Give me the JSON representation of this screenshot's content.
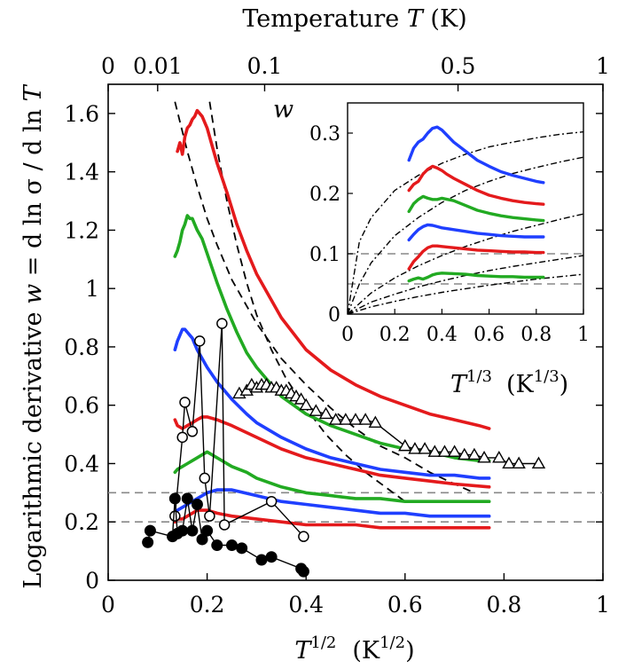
{
  "chart_data": [
    {
      "type": "line",
      "x_axis": {
        "label_main": "T",
        "label_exp": "1/2",
        "label_unit_base": "(K",
        "label_unit_exp": "1/2",
        "label_unit_close": ")",
        "range": [
          0,
          1
        ],
        "ticks": [
          0,
          0.2,
          0.4,
          0.6,
          0.8,
          1
        ],
        "tick_labels": [
          "0",
          "0.2",
          "0.4",
          "0.6",
          "0.8",
          "1"
        ]
      },
      "top_axis": {
        "label_prefix": "Temperature ",
        "label_var": "T",
        "label_suffix": " (K)",
        "ticks_T": [
          0,
          0.01,
          0.1,
          0.5,
          1
        ],
        "tick_labels": [
          "0",
          "0.01",
          "0.1",
          "0.5",
          "1"
        ]
      },
      "y_axis": {
        "label_prefix": "Logarithmic derivative  ",
        "label_var": "w",
        "label_mid": " = d ln σ  / d ln ",
        "label_var2": "T",
        "range": [
          0,
          1.7
        ],
        "ticks": [
          0,
          0.2,
          0.4,
          0.6,
          0.8,
          1,
          1.2,
          1.4,
          1.6
        ],
        "tick_labels": [
          "0",
          "0.2",
          "0.4",
          "0.6",
          "0.8",
          "1",
          "1.2",
          "1.4",
          "1.6"
        ]
      },
      "hlines": [
        0.2,
        0.3
      ],
      "dashed_fits": [
        {
          "x": [
            0.135,
            0.16,
            0.18,
            0.2,
            0.22,
            0.25,
            0.3,
            0.35,
            0.4,
            0.45,
            0.5,
            0.55,
            0.6,
            0.65,
            0.7,
            0.74
          ],
          "y": [
            1.64,
            1.47,
            1.35,
            1.24,
            1.15,
            1.03,
            0.88,
            0.76,
            0.67,
            0.59,
            0.52,
            0.46,
            0.42,
            0.37,
            0.33,
            0.3
          ]
        },
        {
          "x": [
            0.205,
            0.22,
            0.24,
            0.26,
            0.28,
            0.3,
            0.33,
            0.36,
            0.4,
            0.44,
            0.48,
            0.52,
            0.56,
            0.6
          ],
          "y": [
            1.64,
            1.48,
            1.3,
            1.15,
            1.02,
            0.91,
            0.79,
            0.69,
            0.59,
            0.5,
            0.43,
            0.37,
            0.32,
            0.27
          ]
        }
      ],
      "series": [
        {
          "color": "#e41a1c",
          "x": [
            0.14,
            0.145,
            0.15,
            0.155,
            0.16,
            0.165,
            0.17,
            0.175,
            0.18,
            0.19,
            0.2,
            0.21,
            0.22,
            0.24,
            0.26,
            0.28,
            0.3,
            0.35,
            0.4,
            0.45,
            0.5,
            0.55,
            0.6,
            0.65,
            0.7,
            0.75,
            0.77
          ],
          "y": [
            1.47,
            1.5,
            1.46,
            1.52,
            1.55,
            1.56,
            1.58,
            1.59,
            1.61,
            1.59,
            1.55,
            1.49,
            1.43,
            1.33,
            1.22,
            1.13,
            1.05,
            0.9,
            0.79,
            0.72,
            0.67,
            0.63,
            0.6,
            0.57,
            0.55,
            0.53,
            0.52
          ]
        },
        {
          "color": "#22aa22",
          "x": [
            0.135,
            0.14,
            0.145,
            0.15,
            0.155,
            0.16,
            0.165,
            0.17,
            0.175,
            0.18,
            0.19,
            0.2,
            0.22,
            0.24,
            0.26,
            0.28,
            0.3,
            0.35,
            0.4,
            0.45,
            0.5,
            0.55,
            0.6,
            0.65,
            0.7,
            0.75,
            0.77
          ],
          "y": [
            1.11,
            1.13,
            1.16,
            1.2,
            1.22,
            1.25,
            1.24,
            1.24,
            1.22,
            1.2,
            1.17,
            1.12,
            1.02,
            0.93,
            0.85,
            0.78,
            0.73,
            0.63,
            0.57,
            0.53,
            0.5,
            0.47,
            0.45,
            0.44,
            0.42,
            0.41,
            0.41
          ]
        },
        {
          "color": "#1f3fff",
          "x": [
            0.135,
            0.14,
            0.145,
            0.15,
            0.155,
            0.16,
            0.165,
            0.17,
            0.175,
            0.18,
            0.19,
            0.2,
            0.22,
            0.25,
            0.28,
            0.3,
            0.35,
            0.4,
            0.45,
            0.5,
            0.55,
            0.6,
            0.65,
            0.7,
            0.75,
            0.77
          ],
          "y": [
            0.79,
            0.82,
            0.84,
            0.86,
            0.86,
            0.85,
            0.84,
            0.83,
            0.81,
            0.79,
            0.76,
            0.73,
            0.68,
            0.62,
            0.57,
            0.54,
            0.49,
            0.45,
            0.42,
            0.4,
            0.38,
            0.37,
            0.36,
            0.36,
            0.35,
            0.35
          ]
        },
        {
          "color": "#e41a1c",
          "x": [
            0.135,
            0.14,
            0.15,
            0.16,
            0.17,
            0.18,
            0.19,
            0.2,
            0.22,
            0.25,
            0.3,
            0.35,
            0.4,
            0.45,
            0.5,
            0.55,
            0.6,
            0.65,
            0.7,
            0.77
          ],
          "y": [
            0.55,
            0.53,
            0.52,
            0.53,
            0.54,
            0.55,
            0.56,
            0.56,
            0.55,
            0.53,
            0.49,
            0.45,
            0.42,
            0.4,
            0.38,
            0.36,
            0.35,
            0.34,
            0.33,
            0.32
          ]
        },
        {
          "color": "#22aa22",
          "x": [
            0.135,
            0.14,
            0.15,
            0.16,
            0.17,
            0.18,
            0.19,
            0.2,
            0.22,
            0.25,
            0.28,
            0.3,
            0.35,
            0.4,
            0.45,
            0.5,
            0.55,
            0.6,
            0.65,
            0.7,
            0.77
          ],
          "y": [
            0.37,
            0.38,
            0.39,
            0.4,
            0.41,
            0.42,
            0.43,
            0.44,
            0.42,
            0.39,
            0.37,
            0.35,
            0.32,
            0.3,
            0.29,
            0.28,
            0.28,
            0.27,
            0.27,
            0.27,
            0.27
          ]
        },
        {
          "color": "#1f3fff",
          "x": [
            0.135,
            0.14,
            0.15,
            0.16,
            0.17,
            0.18,
            0.2,
            0.22,
            0.25,
            0.3,
            0.35,
            0.4,
            0.45,
            0.5,
            0.55,
            0.6,
            0.65,
            0.7,
            0.77
          ],
          "y": [
            0.22,
            0.24,
            0.25,
            0.26,
            0.27,
            0.28,
            0.3,
            0.31,
            0.31,
            0.29,
            0.27,
            0.26,
            0.25,
            0.24,
            0.23,
            0.23,
            0.22,
            0.22,
            0.22
          ]
        },
        {
          "color": "#e41a1c",
          "x": [
            0.135,
            0.14,
            0.15,
            0.16,
            0.17,
            0.18,
            0.2,
            0.22,
            0.25,
            0.3,
            0.35,
            0.4,
            0.45,
            0.5,
            0.55,
            0.6,
            0.65,
            0.7,
            0.77
          ],
          "y": [
            0.2,
            0.21,
            0.21,
            0.22,
            0.23,
            0.24,
            0.24,
            0.23,
            0.22,
            0.21,
            0.2,
            0.19,
            0.19,
            0.19,
            0.18,
            0.18,
            0.18,
            0.18,
            0.18
          ]
        }
      ],
      "triangles": {
        "x": [
          0.265,
          0.28,
          0.29,
          0.3,
          0.31,
          0.32,
          0.33,
          0.34,
          0.35,
          0.36,
          0.37,
          0.38,
          0.39,
          0.4,
          0.42,
          0.44,
          0.46,
          0.48,
          0.5,
          0.52,
          0.54,
          0.6,
          0.62,
          0.64,
          0.66,
          0.68,
          0.7,
          0.72,
          0.74,
          0.76,
          0.79,
          0.81,
          0.83,
          0.87
        ],
        "y": [
          0.64,
          0.65,
          0.67,
          0.66,
          0.67,
          0.67,
          0.66,
          0.66,
          0.65,
          0.65,
          0.64,
          0.63,
          0.62,
          0.6,
          0.58,
          0.57,
          0.55,
          0.55,
          0.55,
          0.55,
          0.54,
          0.46,
          0.45,
          0.45,
          0.44,
          0.44,
          0.44,
          0.43,
          0.43,
          0.42,
          0.42,
          0.4,
          0.4,
          0.4
        ]
      },
      "open_circles": {
        "x": [
          0.135,
          0.15,
          0.155,
          0.17,
          0.185,
          0.195,
          0.205,
          0.23,
          0.235,
          0.33,
          0.395
        ],
        "y": [
          0.22,
          0.49,
          0.61,
          0.51,
          0.82,
          0.35,
          0.22,
          0.88,
          0.19,
          0.27,
          0.15
        ]
      },
      "closed_circles": {
        "x": [
          0.08,
          0.085,
          0.13,
          0.135,
          0.14,
          0.15,
          0.16,
          0.17,
          0.18,
          0.19,
          0.2,
          0.22,
          0.25,
          0.27,
          0.31,
          0.33,
          0.39,
          0.395
        ],
        "y": [
          0.13,
          0.17,
          0.15,
          0.28,
          0.16,
          0.17,
          0.28,
          0.17,
          0.26,
          0.14,
          0.17,
          0.12,
          0.12,
          0.11,
          0.07,
          0.08,
          0.04,
          0.03
        ]
      }
    },
    {
      "type": "line",
      "x_axis": {
        "label_main": "T",
        "label_exp": "1/3",
        "label_unit_base": "(K",
        "label_unit_exp": "1/3",
        "label_unit_close": ")",
        "range": [
          0,
          1
        ],
        "ticks": [
          0,
          0.2,
          0.4,
          0.6,
          0.8,
          1
        ],
        "tick_labels": [
          "0",
          "0.2",
          "0.4",
          "0.6",
          "0.8",
          "1"
        ]
      },
      "y_axis": {
        "label": "w",
        "range": [
          0,
          0.35
        ],
        "ticks": [
          0,
          0.1,
          0.2,
          0.3
        ],
        "tick_labels": [
          "0",
          "0.1",
          "0.2",
          "0.3"
        ]
      },
      "hlines": [
        0.05,
        0.1
      ],
      "dashdot_curves": [
        {
          "x": [
            0,
            0.05,
            0.1,
            0.2,
            0.3,
            0.4,
            0.5,
            0.6,
            0.7,
            0.8,
            0.9,
            1.0
          ],
          "y": [
            0,
            0.12,
            0.16,
            0.205,
            0.23,
            0.25,
            0.265,
            0.277,
            0.285,
            0.292,
            0.298,
            0.302
          ]
        },
        {
          "x": [
            0,
            0.05,
            0.1,
            0.2,
            0.3,
            0.4,
            0.5,
            0.6,
            0.7,
            0.8,
            0.9,
            1.0
          ],
          "y": [
            0,
            0.05,
            0.085,
            0.13,
            0.16,
            0.185,
            0.205,
            0.22,
            0.233,
            0.243,
            0.252,
            0.26
          ]
        },
        {
          "x": [
            0,
            0.1,
            0.2,
            0.3,
            0.4,
            0.5,
            0.6,
            0.7,
            0.8,
            0.9,
            1.0
          ],
          "y": [
            0,
            0.035,
            0.06,
            0.08,
            0.097,
            0.112,
            0.125,
            0.137,
            0.147,
            0.157,
            0.166
          ]
        },
        {
          "x": [
            0,
            0.1,
            0.2,
            0.3,
            0.4,
            0.5,
            0.6,
            0.7,
            0.8,
            0.9,
            1.0
          ],
          "y": [
            0,
            0.02,
            0.033,
            0.045,
            0.055,
            0.064,
            0.072,
            0.079,
            0.085,
            0.091,
            0.097
          ]
        },
        {
          "x": [
            0,
            0.1,
            0.2,
            0.3,
            0.4,
            0.5,
            0.6,
            0.7,
            0.8,
            0.9,
            1.0
          ],
          "y": [
            0,
            0.012,
            0.021,
            0.029,
            0.036,
            0.042,
            0.048,
            0.053,
            0.058,
            0.062,
            0.066
          ]
        }
      ],
      "series": [
        {
          "color": "#1f3fff",
          "x": [
            0.26,
            0.28,
            0.3,
            0.32,
            0.34,
            0.36,
            0.38,
            0.4,
            0.42,
            0.45,
            0.5,
            0.55,
            0.6,
            0.65,
            0.7,
            0.75,
            0.8,
            0.83
          ],
          "y": [
            0.255,
            0.275,
            0.285,
            0.29,
            0.3,
            0.308,
            0.31,
            0.305,
            0.297,
            0.285,
            0.27,
            0.255,
            0.245,
            0.236,
            0.23,
            0.225,
            0.22,
            0.218
          ]
        },
        {
          "color": "#e41a1c",
          "x": [
            0.26,
            0.28,
            0.3,
            0.32,
            0.34,
            0.36,
            0.38,
            0.4,
            0.42,
            0.45,
            0.5,
            0.55,
            0.6,
            0.65,
            0.7,
            0.75,
            0.8,
            0.83
          ],
          "y": [
            0.205,
            0.215,
            0.22,
            0.232,
            0.24,
            0.245,
            0.242,
            0.238,
            0.232,
            0.225,
            0.215,
            0.205,
            0.197,
            0.192,
            0.188,
            0.185,
            0.183,
            0.182
          ]
        },
        {
          "color": "#22aa22",
          "x": [
            0.26,
            0.28,
            0.3,
            0.32,
            0.34,
            0.36,
            0.38,
            0.4,
            0.45,
            0.5,
            0.55,
            0.6,
            0.65,
            0.7,
            0.75,
            0.8,
            0.83
          ],
          "y": [
            0.17,
            0.183,
            0.19,
            0.195,
            0.192,
            0.19,
            0.19,
            0.192,
            0.188,
            0.18,
            0.172,
            0.167,
            0.163,
            0.16,
            0.158,
            0.156,
            0.155
          ]
        },
        {
          "color": "#1f3fff",
          "x": [
            0.26,
            0.28,
            0.3,
            0.32,
            0.34,
            0.36,
            0.38,
            0.4,
            0.45,
            0.5,
            0.55,
            0.6,
            0.65,
            0.7,
            0.75,
            0.8,
            0.83
          ],
          "y": [
            0.123,
            0.132,
            0.14,
            0.145,
            0.148,
            0.147,
            0.145,
            0.143,
            0.14,
            0.137,
            0.134,
            0.132,
            0.13,
            0.129,
            0.128,
            0.128,
            0.128
          ]
        },
        {
          "color": "#e41a1c",
          "x": [
            0.26,
            0.28,
            0.3,
            0.32,
            0.34,
            0.36,
            0.38,
            0.4,
            0.45,
            0.5,
            0.55,
            0.6,
            0.65,
            0.7,
            0.75,
            0.8,
            0.83
          ],
          "y": [
            0.075,
            0.087,
            0.095,
            0.104,
            0.11,
            0.113,
            0.113,
            0.112,
            0.11,
            0.108,
            0.106,
            0.105,
            0.104,
            0.103,
            0.103,
            0.102,
            0.102
          ]
        },
        {
          "color": "#22aa22",
          "x": [
            0.26,
            0.28,
            0.3,
            0.32,
            0.34,
            0.36,
            0.38,
            0.4,
            0.45,
            0.5,
            0.55,
            0.6,
            0.65,
            0.7,
            0.75,
            0.8,
            0.83
          ],
          "y": [
            0.055,
            0.058,
            0.06,
            0.058,
            0.061,
            0.065,
            0.067,
            0.068,
            0.067,
            0.066,
            0.064,
            0.063,
            0.062,
            0.062,
            0.061,
            0.061,
            0.061
          ]
        }
      ]
    }
  ]
}
